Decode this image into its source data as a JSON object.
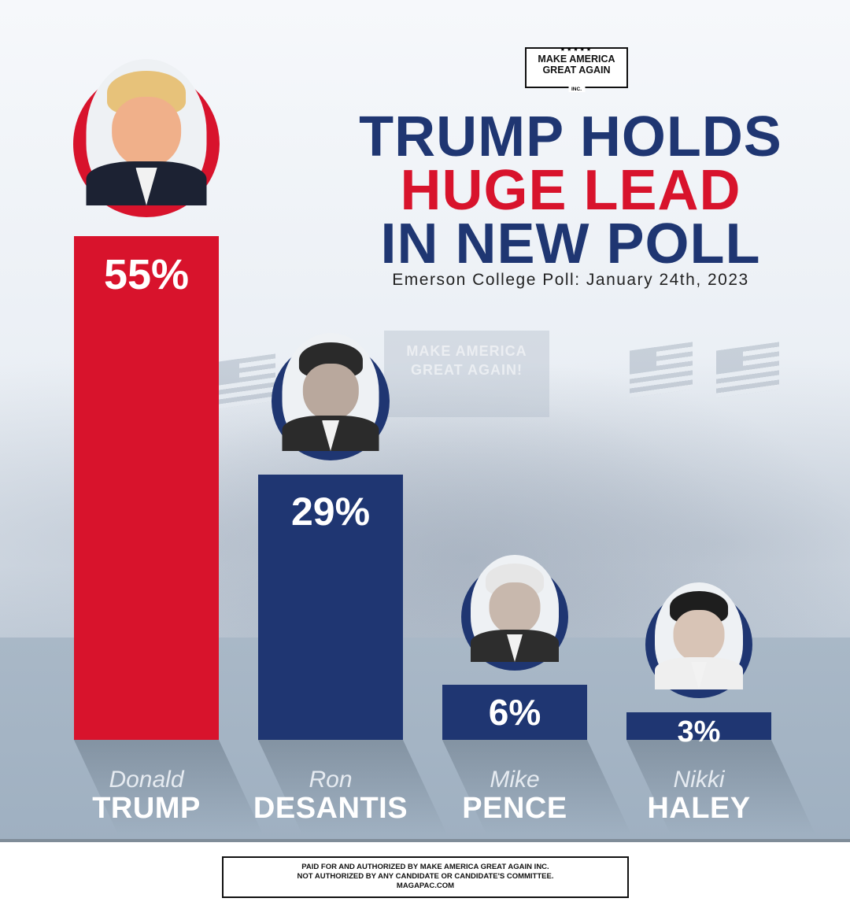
{
  "logo": {
    "stars": "★★★★★",
    "line1": "MAKE AMERICA",
    "line2": "GREAT AGAIN",
    "inc": "INC."
  },
  "headline": {
    "line1": "TRUMP HOLDS",
    "line2": "HUGE LEAD",
    "line3": "IN NEW POLL"
  },
  "background_sign": "MAKE AMERICA GREAT AGAIN!",
  "chart_data": {
    "type": "bar",
    "title": "TRUMP HOLDS HUGE LEAD IN NEW POLL",
    "subtitle": "Emerson College Poll: January 24th, 2023",
    "unit": "%",
    "ylim": [
      0,
      55
    ],
    "grid": false,
    "categories": [
      "Donald TRUMP",
      "Ron DESANTIS",
      "Mike PENCE",
      "Nikki HALEY"
    ],
    "bars": [
      {
        "first": "Donald",
        "last": "TRUMP",
        "value": 55,
        "label": "55%",
        "color": "#d8132c",
        "accent": "#d8132c"
      },
      {
        "first": "Ron",
        "last": "DESANTIS",
        "value": 29,
        "label": "29%",
        "color": "#1f3672",
        "accent": "#1f3672"
      },
      {
        "first": "Mike",
        "last": "PENCE",
        "value": 6,
        "label": "6%",
        "color": "#1f3672",
        "accent": "#1f3672"
      },
      {
        "first": "Nikki",
        "last": "HALEY",
        "value": 3,
        "label": "3%",
        "color": "#1f3672",
        "accent": "#1f3672"
      }
    ]
  },
  "disclaimer": {
    "line1": "PAID FOR AND AUTHORIZED BY MAKE AMERICA GREAT AGAIN INC.",
    "line2": "NOT AUTHORIZED BY ANY CANDIDATE OR CANDIDATE'S COMMITTEE.",
    "line3": "MAGAPAC.COM"
  }
}
